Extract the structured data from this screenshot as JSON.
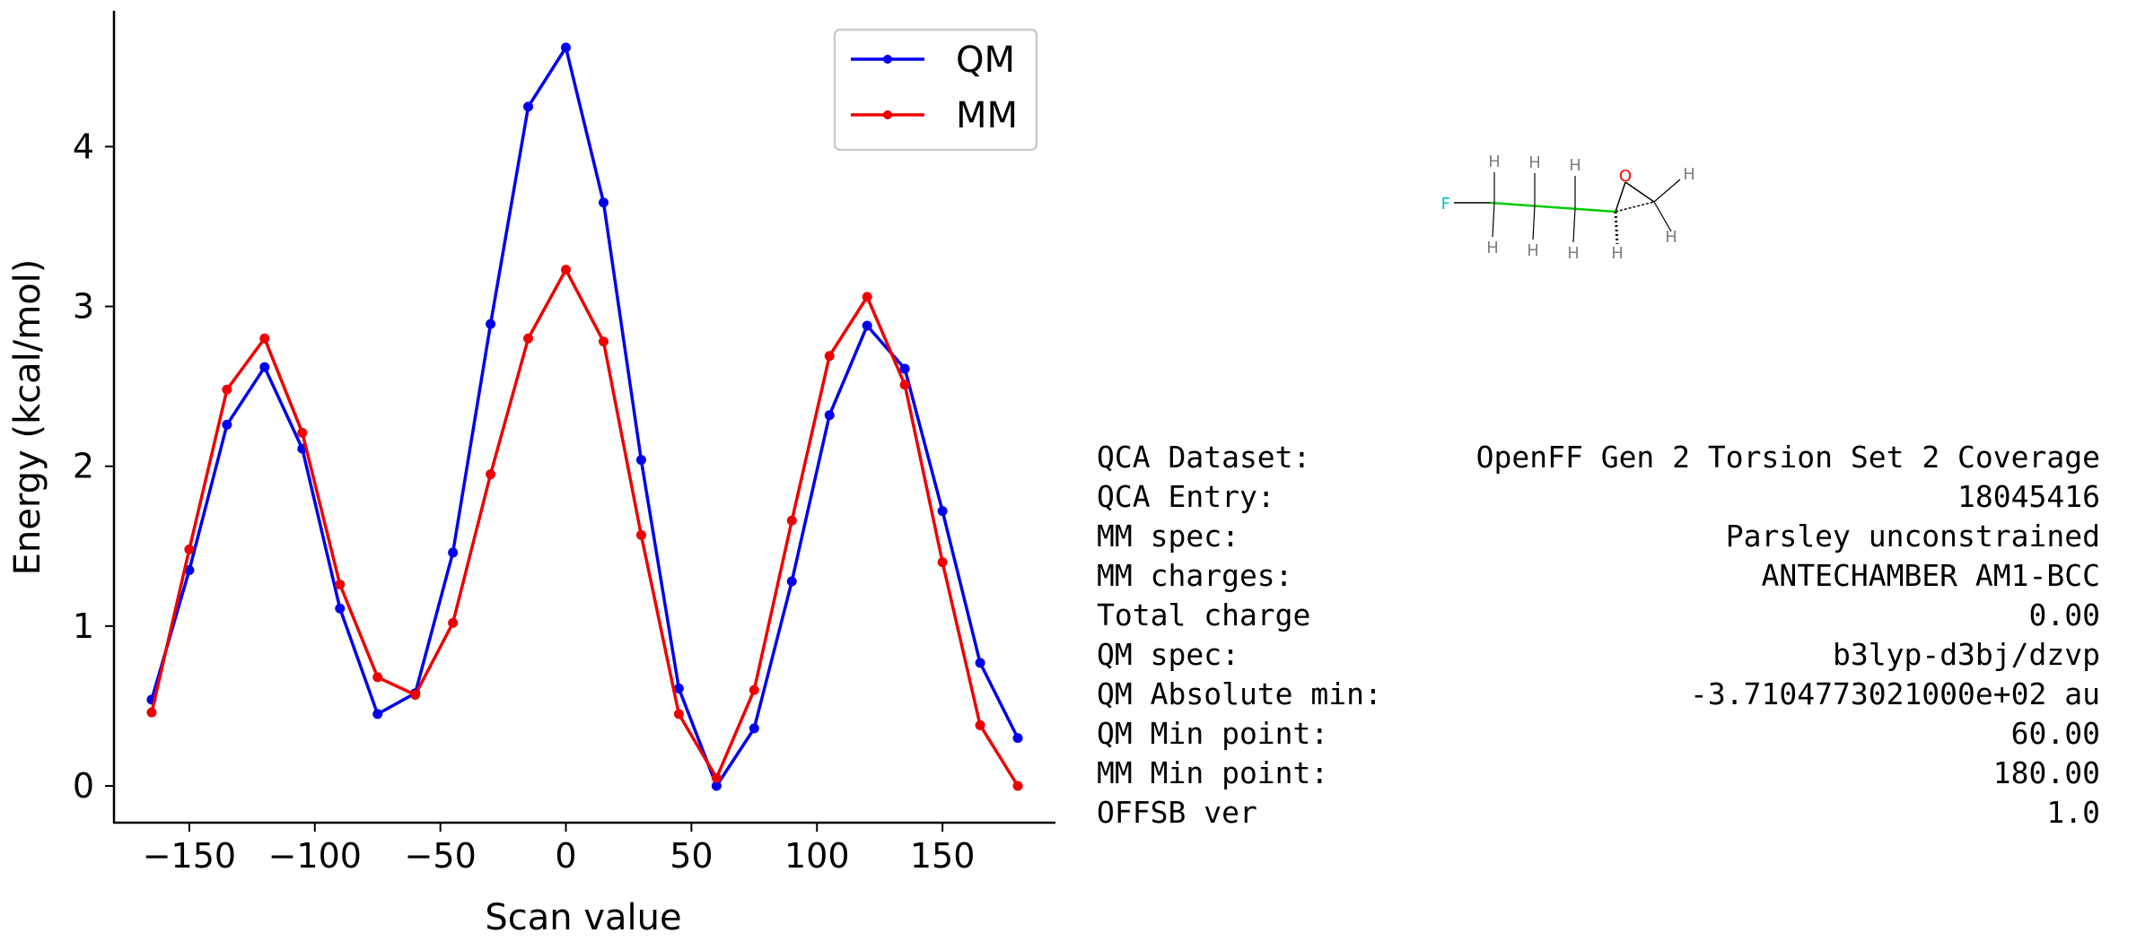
{
  "chart_data": {
    "type": "line",
    "xlabel": "Scan value",
    "ylabel": "Energy (kcal/mol)",
    "xlim": [
      -180,
      195
    ],
    "ylim": [
      -0.23,
      4.85
    ],
    "xticks": [
      -150,
      -100,
      -50,
      0,
      50,
      100,
      150
    ],
    "xtick_labels": [
      "−150",
      "−100",
      "−50",
      "0",
      "50",
      "100",
      "150"
    ],
    "yticks": [
      0,
      1,
      2,
      3,
      4
    ],
    "ytick_labels": [
      "0",
      "1",
      "2",
      "3",
      "4"
    ],
    "legend_position": "top-right",
    "grid": false,
    "x": [
      -165,
      -150,
      -135,
      -120,
      -105,
      -90,
      -75,
      -60,
      -45,
      -30,
      -15,
      0,
      15,
      30,
      45,
      60,
      75,
      90,
      105,
      120,
      135,
      150,
      165,
      180
    ],
    "series": [
      {
        "name": "QM",
        "color": "#0000ee",
        "values": [
          0.54,
          1.35,
          2.26,
          2.62,
          2.11,
          1.11,
          0.45,
          0.58,
          1.46,
          2.89,
          4.25,
          4.62,
          3.65,
          2.04,
          0.61,
          0.0,
          0.36,
          1.28,
          2.32,
          2.88,
          2.61,
          1.72,
          0.77,
          0.3
        ]
      },
      {
        "name": "MM",
        "color": "#ee0000",
        "values": [
          0.46,
          1.48,
          2.48,
          2.8,
          2.21,
          1.26,
          0.68,
          0.57,
          1.02,
          1.95,
          2.8,
          3.23,
          2.78,
          1.57,
          0.45,
          0.05,
          0.6,
          1.66,
          2.69,
          3.06,
          2.51,
          1.4,
          0.38,
          0.0
        ]
      }
    ]
  },
  "info": [
    {
      "label": "QCA Dataset:",
      "value": "OpenFF Gen 2 Torsion Set 2 Coverage"
    },
    {
      "label": "QCA Entry:",
      "value": "18045416"
    },
    {
      "label": "MM spec:",
      "value": "Parsley unconstrained"
    },
    {
      "label": "MM charges:",
      "value": "ANTECHAMBER AM1-BCC"
    },
    {
      "label": "Total charge",
      "value": "0.00"
    },
    {
      "label": "QM spec:",
      "value": "b3lyp-d3bj/dzvp"
    },
    {
      "label": "QM Absolute min:",
      "value": "-3.7104773021000e+02 au"
    },
    {
      "label": "QM Min point:",
      "value": "60.00"
    },
    {
      "label": "MM Min point:",
      "value": "180.00"
    },
    {
      "label": "OFFSB ver",
      "value": "1.0"
    }
  ],
  "molecule": {
    "atoms": {
      "fluorine": "F",
      "oxygen": "O",
      "hydrogen": "H"
    },
    "colors": {
      "fluorine": "#00bfbf",
      "oxygen": "#ff0000",
      "hydrogen": "#808080",
      "bond": "#00cc00"
    }
  }
}
